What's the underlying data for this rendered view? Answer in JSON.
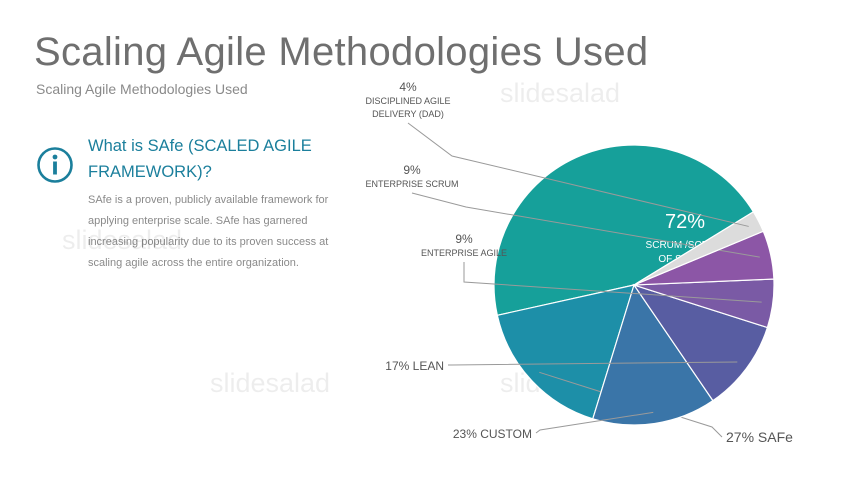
{
  "header": {
    "title": "Scaling Agile Methodologies Used",
    "subtitle": "Scaling Agile Methodologies Used"
  },
  "info": {
    "icon": "info-icon",
    "heading": "What is SAfe (SCALED AGILE FRAMEWORK)?",
    "body": "SAfe is a proven, publicly available framework for applying enterprise scale. SAfe has garnered increasing popularity due to its proven success at scaling agile across the entire organization."
  },
  "watermark": "slidesalad",
  "chart_data": {
    "type": "pie",
    "slices": [
      {
        "name": "SCRUM /SCRUM OF SCRUM",
        "value": 72,
        "label": "72%",
        "color": "#16a09a"
      },
      {
        "name": "SAFe",
        "value": 27,
        "label": "27% SAFe",
        "color": "#1d8fa8"
      },
      {
        "name": "CUSTOM",
        "value": 23,
        "label": "23% CUSTOM",
        "color": "#3a75a8"
      },
      {
        "name": "LEAN",
        "value": 17,
        "label": "17% LEAN",
        "color": "#585da2"
      },
      {
        "name": "ENTERPRISE AGILE",
        "value": 9,
        "label": "9%|ENTERPRISE AGILE",
        "color": "#7a5aa5"
      },
      {
        "name": "ENTERPRISE SCRUM",
        "value": 9,
        "label": "9%|ENTERPRISE SCRUM",
        "color": "#8c56a6"
      },
      {
        "name": "DISCIPLINED AGILE DELIVERY (DAD)",
        "value": 4,
        "label": "4%|DISCIPLINED AGILE|DELIVERY (DAD)",
        "color": "#dcdcdc"
      }
    ]
  }
}
